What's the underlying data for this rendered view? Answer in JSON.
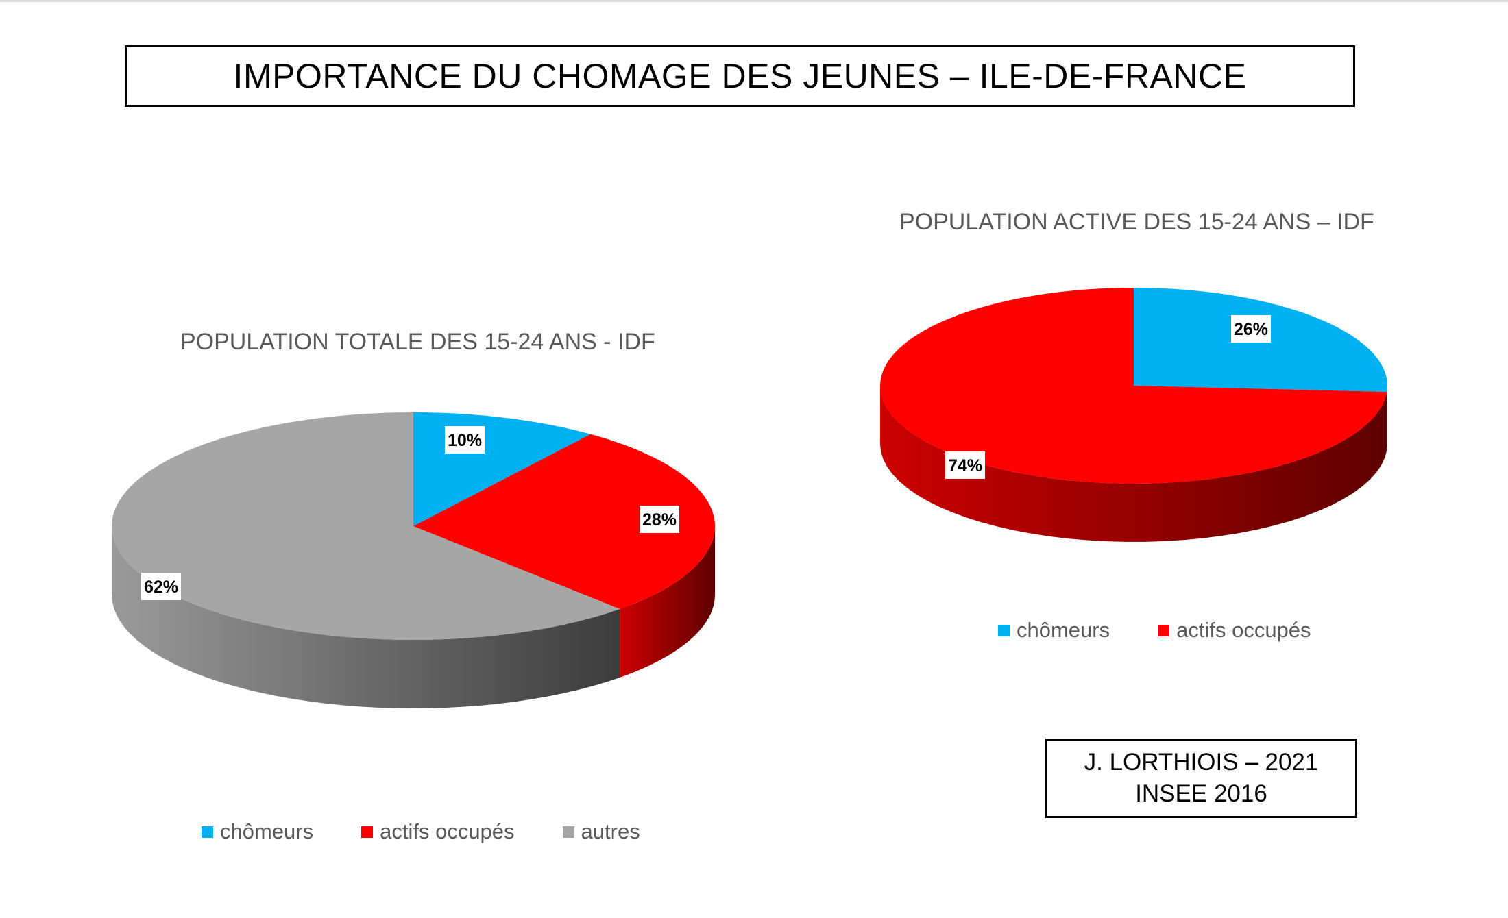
{
  "title": "IMPORTANCE DU CHOMAGE DES JEUNES – ILE-DE-FRANCE",
  "credit": {
    "line1": "J. LORTHIOIS – 2021",
    "line2": "INSEE 2016"
  },
  "chart_data": [
    {
      "type": "pie",
      "title": "POPULATION  TOTALE DES 15-24 ANS - IDF",
      "categories": [
        "chômeurs",
        "actifs occupés",
        "autres"
      ],
      "values": [
        10,
        28,
        62
      ],
      "labels": [
        "10%",
        "28%",
        "62%"
      ],
      "colors": [
        "#00b0f0",
        "#ff0000",
        "#a6a6a6"
      ],
      "legend": "bottom"
    },
    {
      "type": "pie",
      "title": "POPULATION  ACTIVE DES 15-24 ANS – IDF",
      "categories": [
        "chômeurs",
        "actifs occupés"
      ],
      "values": [
        26,
        74
      ],
      "labels": [
        "26%",
        "74%"
      ],
      "colors": [
        "#00b0f0",
        "#ff0000"
      ],
      "legend": "bottom"
    }
  ]
}
